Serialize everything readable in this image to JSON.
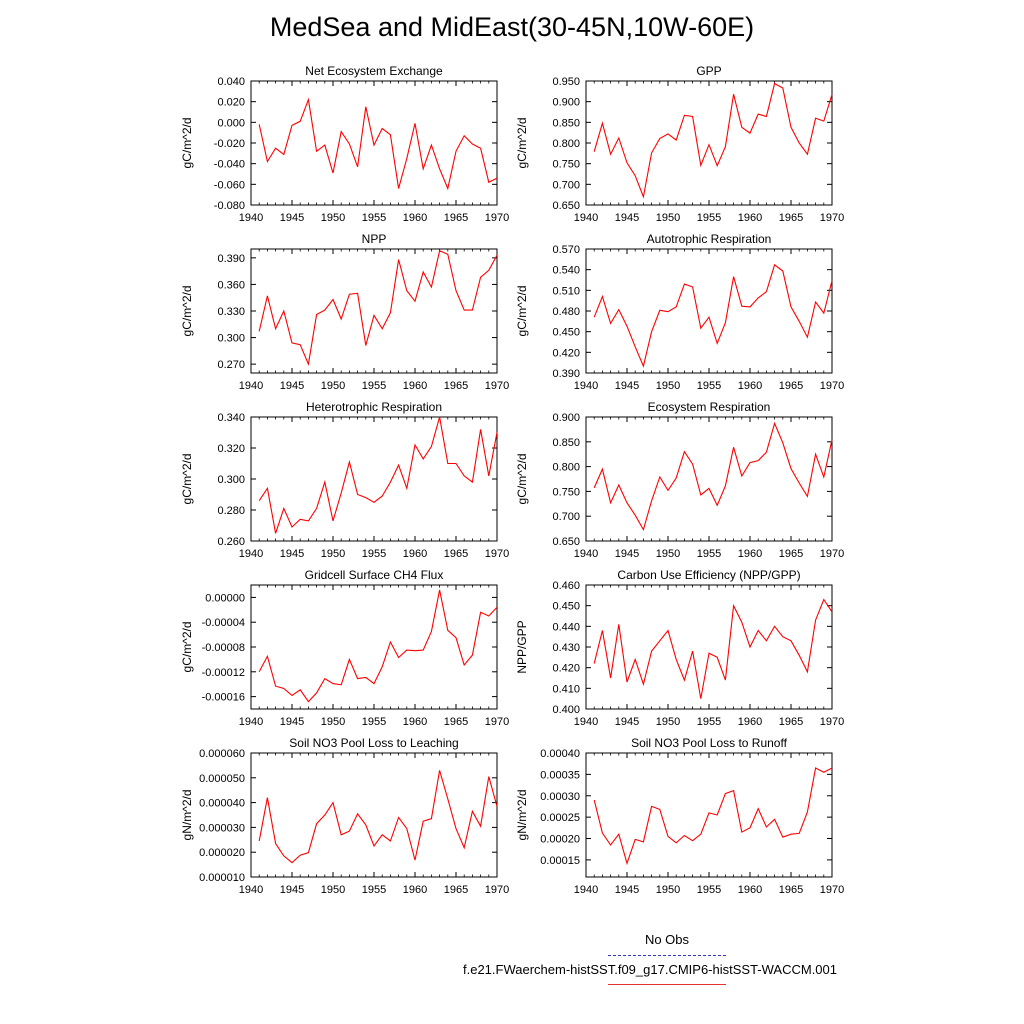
{
  "title": "MedSea and MidEast(30-45N,10W-60E)",
  "line_color": "#ff0000",
  "obs_color": "#3333cc",
  "legend": {
    "obs_label": "No Obs",
    "model_label": "f.e21.FWaerchem-histSST.f09_g17.CMIP6-histSST-WACCM.001"
  },
  "chart_data": [
    {
      "type": "line",
      "title": "Net Ecosystem Exchange",
      "ylabel": "gC/m^2/d",
      "xlim": [
        1940,
        1970
      ],
      "ylim": [
        -0.08,
        0.04
      ],
      "xticks": [
        "1940",
        "1945",
        "1950",
        "1955",
        "1960",
        "1965",
        "1970"
      ],
      "yticks": [
        "0.040",
        "0.020",
        "0.000",
        "-0.020",
        "-0.040",
        "-0.060",
        "-0.080"
      ],
      "x": [
        1941,
        1942,
        1943,
        1944,
        1945,
        1946,
        1947,
        1948,
        1949,
        1950,
        1951,
        1952,
        1953,
        1954,
        1955,
        1956,
        1957,
        1958,
        1959,
        1960,
        1961,
        1962,
        1963,
        1964,
        1965,
        1966,
        1967,
        1968,
        1969,
        1970
      ],
      "values": [
        -0.002,
        -0.038,
        -0.025,
        -0.031,
        -0.003,
        0.001,
        0.022,
        -0.028,
        -0.022,
        -0.049,
        -0.009,
        -0.021,
        -0.043,
        0.015,
        -0.022,
        -0.006,
        -0.012,
        -0.064,
        -0.035,
        -0.001,
        -0.045,
        -0.022,
        -0.045,
        -0.064,
        -0.028,
        -0.013,
        -0.021,
        -0.025,
        -0.058,
        -0.054
      ]
    },
    {
      "type": "line",
      "title": "GPP",
      "ylabel": "gC/m^2/d",
      "xlim": [
        1940,
        1970
      ],
      "ylim": [
        0.65,
        0.95
      ],
      "xticks": [
        "1940",
        "1945",
        "1950",
        "1955",
        "1960",
        "1965",
        "1970"
      ],
      "yticks": [
        "0.950",
        "0.900",
        "0.850",
        "0.800",
        "0.750",
        "0.700",
        "0.650"
      ],
      "x": [
        1941,
        1942,
        1943,
        1944,
        1945,
        1946,
        1947,
        1948,
        1949,
        1950,
        1951,
        1952,
        1953,
        1954,
        1955,
        1956,
        1957,
        1958,
        1959,
        1960,
        1961,
        1962,
        1963,
        1964,
        1965,
        1966,
        1967,
        1968,
        1969,
        1970
      ],
      "values": [
        0.779,
        0.848,
        0.773,
        0.812,
        0.752,
        0.721,
        0.67,
        0.776,
        0.811,
        0.822,
        0.807,
        0.867,
        0.864,
        0.746,
        0.796,
        0.745,
        0.791,
        0.918,
        0.838,
        0.824,
        0.87,
        0.864,
        0.944,
        0.933,
        0.838,
        0.8,
        0.773,
        0.86,
        0.853,
        0.917
      ]
    },
    {
      "type": "line",
      "title": "NPP",
      "ylabel": "gC/m^2/d",
      "xlim": [
        1940,
        1970
      ],
      "ylim": [
        0.26,
        0.4
      ],
      "xticks": [
        "1940",
        "1945",
        "1950",
        "1955",
        "1960",
        "1965",
        "1970"
      ],
      "yticks": [
        "0.390",
        "0.360",
        "0.330",
        "0.300",
        "0.270"
      ],
      "x": [
        1941,
        1942,
        1943,
        1944,
        1945,
        1946,
        1947,
        1948,
        1949,
        1950,
        1951,
        1952,
        1953,
        1954,
        1955,
        1956,
        1957,
        1958,
        1959,
        1960,
        1961,
        1962,
        1963,
        1964,
        1965,
        1966,
        1967,
        1968,
        1969,
        1970
      ],
      "values": [
        0.307,
        0.347,
        0.31,
        0.33,
        0.294,
        0.292,
        0.27,
        0.326,
        0.331,
        0.343,
        0.321,
        0.349,
        0.35,
        0.291,
        0.325,
        0.31,
        0.328,
        0.388,
        0.353,
        0.341,
        0.374,
        0.357,
        0.398,
        0.394,
        0.353,
        0.331,
        0.331,
        0.368,
        0.376,
        0.393
      ]
    },
    {
      "type": "line",
      "title": "Autotrophic Respiration",
      "ylabel": "gC/m^2/d",
      "xlim": [
        1940,
        1970
      ],
      "ylim": [
        0.39,
        0.57
      ],
      "xticks": [
        "1940",
        "1945",
        "1950",
        "1955",
        "1960",
        "1965",
        "1970"
      ],
      "yticks": [
        "0.570",
        "0.540",
        "0.510",
        "0.480",
        "0.450",
        "0.420",
        "0.390"
      ],
      "x": [
        1941,
        1942,
        1943,
        1944,
        1945,
        1946,
        1947,
        1948,
        1949,
        1950,
        1951,
        1952,
        1953,
        1954,
        1955,
        1956,
        1957,
        1958,
        1959,
        1960,
        1961,
        1962,
        1963,
        1964,
        1965,
        1966,
        1967,
        1968,
        1969,
        1970
      ],
      "values": [
        0.471,
        0.501,
        0.462,
        0.482,
        0.458,
        0.428,
        0.4,
        0.45,
        0.481,
        0.479,
        0.486,
        0.519,
        0.515,
        0.455,
        0.471,
        0.433,
        0.463,
        0.53,
        0.487,
        0.486,
        0.499,
        0.508,
        0.547,
        0.538,
        0.486,
        0.465,
        0.442,
        0.493,
        0.477,
        0.524
      ]
    },
    {
      "type": "line",
      "title": "Heterotrophic Respiration",
      "ylabel": "gC/m^2/d",
      "xlim": [
        1940,
        1970
      ],
      "ylim": [
        0.26,
        0.34
      ],
      "xticks": [
        "1940",
        "1945",
        "1950",
        "1955",
        "1960",
        "1965",
        "1970"
      ],
      "yticks": [
        "0.340",
        "0.320",
        "0.300",
        "0.280",
        "0.260"
      ],
      "x": [
        1941,
        1942,
        1943,
        1944,
        1945,
        1946,
        1947,
        1948,
        1949,
        1950,
        1951,
        1952,
        1953,
        1954,
        1955,
        1956,
        1957,
        1958,
        1959,
        1960,
        1961,
        1962,
        1963,
        1964,
        1965,
        1966,
        1967,
        1968,
        1969,
        1970
      ],
      "values": [
        0.286,
        0.294,
        0.265,
        0.281,
        0.269,
        0.274,
        0.273,
        0.281,
        0.298,
        0.273,
        0.291,
        0.311,
        0.29,
        0.288,
        0.285,
        0.289,
        0.298,
        0.309,
        0.294,
        0.322,
        0.313,
        0.321,
        0.34,
        0.31,
        0.31,
        0.302,
        0.298,
        0.332,
        0.302,
        0.33
      ]
    },
    {
      "type": "line",
      "title": "Ecosystem Respiration",
      "ylabel": "gC/m^2/d",
      "xlim": [
        1940,
        1970
      ],
      "ylim": [
        0.65,
        0.9
      ],
      "xticks": [
        "1940",
        "1945",
        "1950",
        "1955",
        "1960",
        "1965",
        "1970"
      ],
      "yticks": [
        "0.900",
        "0.850",
        "0.800",
        "0.750",
        "0.700",
        "0.650"
      ],
      "x": [
        1941,
        1942,
        1943,
        1944,
        1945,
        1946,
        1947,
        1948,
        1949,
        1950,
        1951,
        1952,
        1953,
        1954,
        1955,
        1956,
        1957,
        1958,
        1959,
        1960,
        1961,
        1962,
        1963,
        1964,
        1965,
        1966,
        1967,
        1968,
        1969,
        1970
      ],
      "values": [
        0.757,
        0.795,
        0.727,
        0.763,
        0.727,
        0.702,
        0.673,
        0.731,
        0.779,
        0.752,
        0.777,
        0.83,
        0.805,
        0.743,
        0.756,
        0.722,
        0.761,
        0.839,
        0.781,
        0.808,
        0.812,
        0.829,
        0.887,
        0.848,
        0.796,
        0.767,
        0.74,
        0.825,
        0.779,
        0.854
      ]
    },
    {
      "type": "line",
      "title": "Gridcell Surface CH4 Flux",
      "ylabel": "gC/m^2/d",
      "xlim": [
        1940,
        1970
      ],
      "ylim": [
        -0.00018,
        2e-05
      ],
      "xticks": [
        "1940",
        "1945",
        "1950",
        "1955",
        "1960",
        "1965",
        "1970"
      ],
      "yticks": [
        "0.00000",
        "-0.00004",
        "-0.00008",
        "-0.00012",
        "-0.00016"
      ],
      "x": [
        1941,
        1942,
        1943,
        1944,
        1945,
        1946,
        1947,
        1948,
        1949,
        1950,
        1951,
        1952,
        1953,
        1954,
        1955,
        1956,
        1957,
        1958,
        1959,
        1960,
        1961,
        1962,
        1963,
        1964,
        1965,
        1966,
        1967,
        1968,
        1969,
        1970
      ],
      "values": [
        -0.00012,
        -9.5e-05,
        -0.000143,
        -0.000147,
        -0.000158,
        -0.000149,
        -0.000168,
        -0.000154,
        -0.000131,
        -0.000139,
        -0.000141,
        -0.0001,
        -0.000131,
        -0.000129,
        -0.000139,
        -0.000112,
        -7.2e-05,
        -9.7e-05,
        -8.5e-05,
        -8.6e-05,
        -8.5e-05,
        -5.5e-05,
        1.2e-05,
        -5.3e-05,
        -6.5e-05,
        -0.000109,
        -9.3e-05,
        -2.4e-05,
        -3e-05,
        -1.6e-05
      ]
    },
    {
      "type": "line",
      "title": "Carbon Use Efficiency (NPP/GPP)",
      "ylabel": "NPP/GPP",
      "xlim": [
        1940,
        1970
      ],
      "ylim": [
        0.4,
        0.46
      ],
      "xticks": [
        "1940",
        "1945",
        "1950",
        "1955",
        "1960",
        "1965",
        "1970"
      ],
      "yticks": [
        "0.460",
        "0.450",
        "0.440",
        "0.430",
        "0.420",
        "0.410",
        "0.400"
      ],
      "x": [
        1941,
        1942,
        1943,
        1944,
        1945,
        1946,
        1947,
        1948,
        1949,
        1950,
        1951,
        1952,
        1953,
        1954,
        1955,
        1956,
        1957,
        1958,
        1959,
        1960,
        1961,
        1962,
        1963,
        1964,
        1965,
        1966,
        1967,
        1968,
        1969,
        1970
      ],
      "values": [
        0.422,
        0.438,
        0.415,
        0.441,
        0.413,
        0.424,
        0.412,
        0.428,
        0.433,
        0.438,
        0.424,
        0.414,
        0.428,
        0.405,
        0.427,
        0.425,
        0.414,
        0.45,
        0.442,
        0.43,
        0.438,
        0.433,
        0.44,
        0.435,
        0.433,
        0.426,
        0.418,
        0.443,
        0.453,
        0.447
      ]
    },
    {
      "type": "line",
      "title": "Soil NO3 Pool Loss to Leaching",
      "ylabel": "gN/m^2/d",
      "xlim": [
        1940,
        1970
      ],
      "ylim": [
        1e-05,
        6e-05
      ],
      "xticks": [
        "1940",
        "1945",
        "1950",
        "1955",
        "1960",
        "1965",
        "1970"
      ],
      "yticks": [
        "0.000060",
        "0.000050",
        "0.000040",
        "0.000030",
        "0.000020",
        "0.000010"
      ],
      "x": [
        1941,
        1942,
        1943,
        1944,
        1945,
        1946,
        1947,
        1948,
        1949,
        1950,
        1951,
        1952,
        1953,
        1954,
        1955,
        1956,
        1957,
        1958,
        1959,
        1960,
        1961,
        1962,
        1963,
        1964,
        1965,
        1966,
        1967,
        1968,
        1969,
        1970
      ],
      "values": [
        2.45e-05,
        4.2e-05,
        2.35e-05,
        1.85e-05,
        1.58e-05,
        1.88e-05,
        1.98e-05,
        3.15e-05,
        3.5e-05,
        4e-05,
        2.7e-05,
        2.85e-05,
        3.55e-05,
        3.1e-05,
        2.25e-05,
        2.7e-05,
        2.45e-05,
        3.4e-05,
        2.95e-05,
        1.68e-05,
        3.25e-05,
        3.35e-05,
        5.3e-05,
        4.15e-05,
        2.95e-05,
        2.18e-05,
        3.65e-05,
        3.05e-05,
        5.05e-05,
        3.85e-05
      ]
    },
    {
      "type": "line",
      "title": "Soil NO3 Pool Loss to Runoff",
      "ylabel": "gN/m^2/d",
      "xlim": [
        1940,
        1970
      ],
      "ylim": [
        0.00011,
        0.0004
      ],
      "xticks": [
        "1940",
        "1945",
        "1950",
        "1955",
        "1960",
        "1965",
        "1970"
      ],
      "yticks": [
        "0.00040",
        "0.00035",
        "0.00030",
        "0.00025",
        "0.00020",
        "0.00015"
      ],
      "x": [
        1941,
        1942,
        1943,
        1944,
        1945,
        1946,
        1947,
        1948,
        1949,
        1950,
        1951,
        1952,
        1953,
        1954,
        1955,
        1956,
        1957,
        1958,
        1959,
        1960,
        1961,
        1962,
        1963,
        1964,
        1965,
        1966,
        1967,
        1968,
        1969,
        1970
      ],
      "values": [
        0.00029,
        0.000213,
        0.000185,
        0.00021,
        0.000142,
        0.000198,
        0.000192,
        0.000275,
        0.000268,
        0.000205,
        0.00019,
        0.000207,
        0.000195,
        0.00021,
        0.00026,
        0.000255,
        0.000305,
        0.000312,
        0.000215,
        0.000225,
        0.00027,
        0.000227,
        0.000245,
        0.000203,
        0.00021,
        0.000212,
        0.000262,
        0.000365,
        0.000355,
        0.000365
      ]
    }
  ]
}
